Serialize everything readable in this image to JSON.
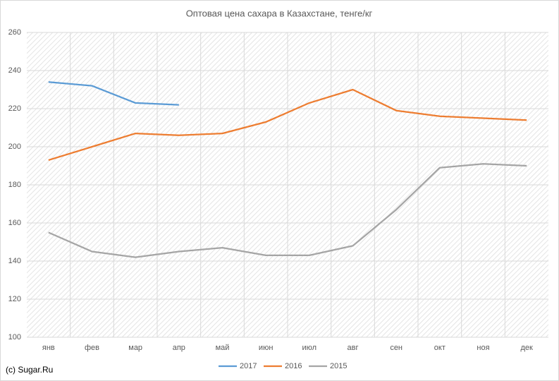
{
  "chart_data": {
    "type": "line",
    "title": "Оптовая цена сахара в Казахстане, тенге/кг",
    "credit": "(c) Sugar.Ru",
    "categories": [
      "янв",
      "фев",
      "мар",
      "апр",
      "май",
      "июн",
      "июл",
      "авг",
      "сен",
      "окт",
      "ноя",
      "дек"
    ],
    "series": [
      {
        "name": "2017",
        "color": "#5b9bd5",
        "values": [
          234,
          232,
          223,
          222,
          null,
          null,
          null,
          null,
          null,
          null,
          null,
          null
        ]
      },
      {
        "name": "2016",
        "color": "#ed7d31",
        "values": [
          193,
          200,
          207,
          206,
          207,
          213,
          223,
          230,
          219,
          216,
          215,
          214
        ]
      },
      {
        "name": "2015",
        "color": "#a5a5a5",
        "values": [
          155,
          145,
          142,
          145,
          147,
          143,
          143,
          148,
          167,
          189,
          191,
          190
        ]
      }
    ],
    "ylim": [
      100,
      260
    ],
    "yticks": [
      100,
      120,
      140,
      160,
      180,
      200,
      220,
      240,
      260
    ],
    "grid": true,
    "legend": "bottom"
  }
}
